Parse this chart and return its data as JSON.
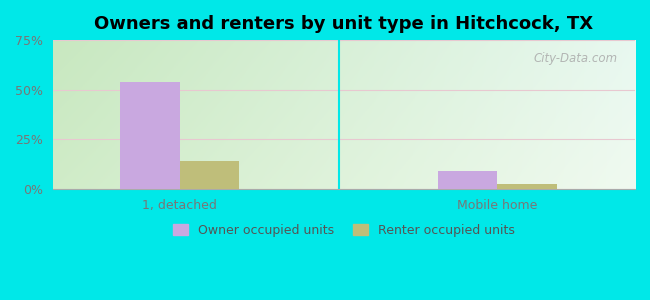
{
  "title": "Owners and renters by unit type in Hitchcock, TX",
  "categories": [
    "1, detached",
    "Mobile home"
  ],
  "owner_values": [
    54,
    9
  ],
  "renter_values": [
    14,
    2.5
  ],
  "owner_color": "#c9a8e0",
  "renter_color": "#bfbe7a",
  "ylim": [
    0,
    75
  ],
  "yticks": [
    0,
    25,
    50,
    75
  ],
  "ytick_labels": [
    "0%",
    "25%",
    "50%",
    "75%"
  ],
  "background_color": "#00e8e8",
  "plot_bg_topleft": "#c8e8c0",
  "plot_bg_topright": "#e8f8f0",
  "plot_bg_bottomleft": "#d0ecc8",
  "plot_bg_bottomright": "#f0faf0",
  "title_fontsize": 13,
  "legend_labels": [
    "Owner occupied units",
    "Renter occupied units"
  ],
  "watermark": "City-Data.com",
  "bar_width": 0.28,
  "group_positions": [
    0.55,
    2.05
  ],
  "xlim": [
    -0.05,
    2.7
  ]
}
